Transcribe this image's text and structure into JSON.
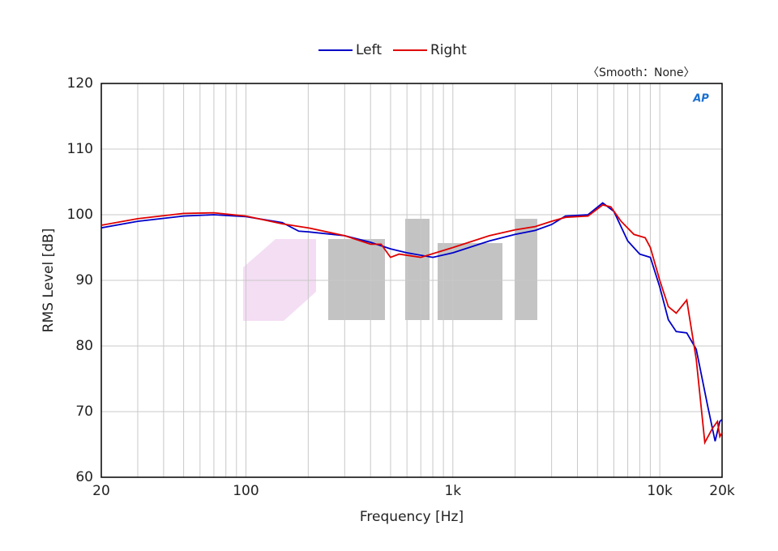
{
  "chart_data": {
    "type": "line",
    "annotation": "〈Smooth：None〉",
    "logo": "AP",
    "x_label": "Frequency [Hz]",
    "y_label": "RMS Level [dB]",
    "xscale": "log",
    "grid": true,
    "legend": "top",
    "xlim": [
      20,
      20000
    ],
    "ylim": [
      60,
      120
    ],
    "xticks": [
      20,
      100,
      {
        "value": 1000,
        "label": "1k"
      },
      {
        "value": 10000,
        "label": "10k"
      },
      {
        "value": 20000,
        "label": "20k"
      }
    ],
    "xminor_ticks": [
      30,
      40,
      50,
      60,
      70,
      80,
      90,
      200,
      300,
      400,
      500,
      600,
      700,
      800,
      900,
      2000,
      3000,
      4000,
      5000,
      6000,
      7000,
      8000,
      9000
    ],
    "yticks": [
      60,
      70,
      80,
      90,
      100,
      110,
      120
    ],
    "series": [
      {
        "name": "Left",
        "color": "#0000c8",
        "x": [
          20,
          30,
          50,
          70,
          100,
          150,
          180,
          200,
          300,
          400,
          500,
          600,
          800,
          1000,
          1500,
          2000,
          2500,
          3000,
          3500,
          4500,
          5300,
          6000,
          7000,
          8000,
          9000,
          10000,
          11000,
          12000,
          13500,
          15000,
          17000,
          18500,
          19500,
          20000
        ],
        "values": [
          98.0,
          99.0,
          99.8,
          100.0,
          99.7,
          98.8,
          97.5,
          97.4,
          96.8,
          95.8,
          94.8,
          94.2,
          93.5,
          94.2,
          96.0,
          97.0,
          97.6,
          98.5,
          99.8,
          100.0,
          101.8,
          100.5,
          96.0,
          94.0,
          93.5,
          89,
          84,
          82.2,
          82,
          79.5,
          71,
          65.5,
          68.5,
          68.8
        ]
      },
      {
        "name": "Right",
        "color": "#e00000",
        "x": [
          20,
          30,
          50,
          70,
          100,
          150,
          200,
          300,
          400,
          450,
          500,
          550,
          700,
          1000,
          1500,
          2000,
          2500,
          3000,
          3500,
          4500,
          5300,
          5800,
          6500,
          7500,
          8500,
          9000,
          10000,
          11000,
          12000,
          13500,
          15000,
          16500,
          18000,
          19000,
          19500,
          20000
        ],
        "values": [
          98.4,
          99.4,
          100.2,
          100.3,
          99.8,
          98.6,
          98.0,
          96.8,
          95.5,
          95.5,
          93.5,
          94.0,
          93.5,
          95,
          96.8,
          97.7,
          98.2,
          99.0,
          99.6,
          99.8,
          101.5,
          101.2,
          99,
          97,
          96.5,
          95,
          90,
          86,
          85,
          87,
          78,
          65.3,
          67.5,
          68.5,
          66.2,
          66.8
        ]
      }
    ]
  }
}
